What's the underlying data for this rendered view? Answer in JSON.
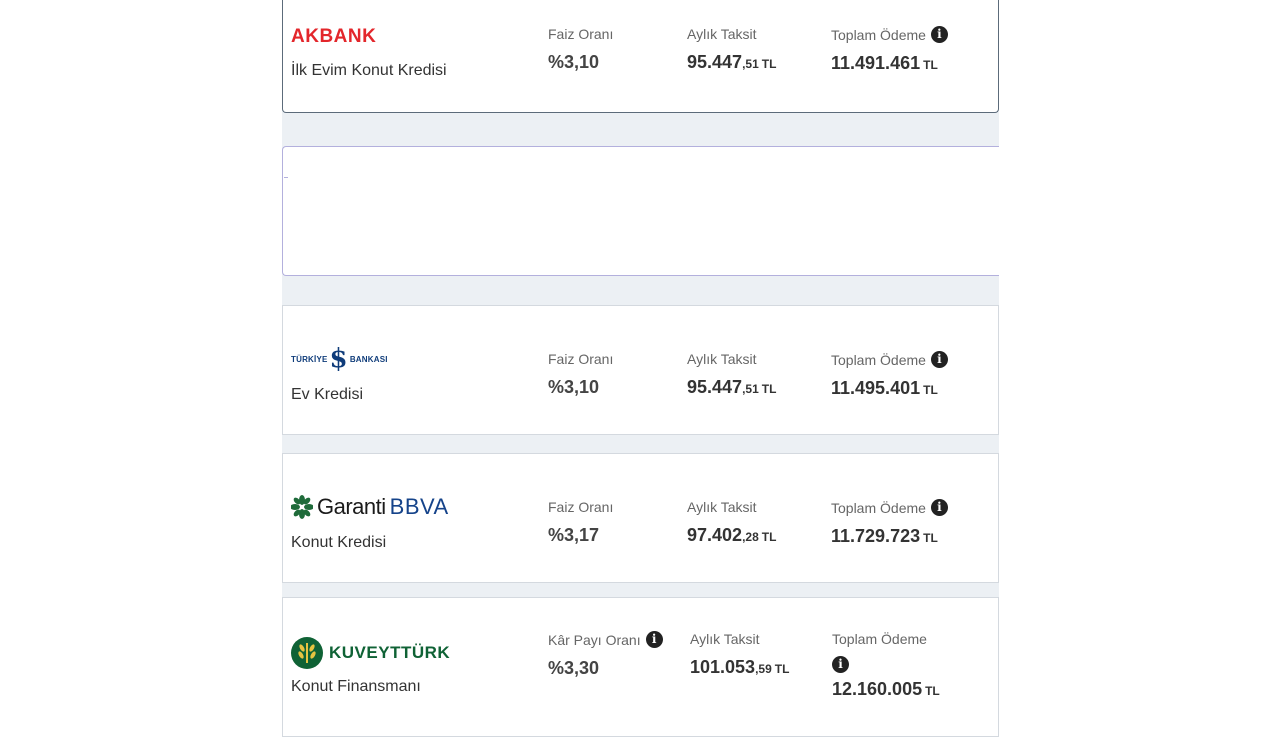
{
  "cards": [
    {
      "bank": "AKBANK",
      "product": "İlk Evim Konut Kredisi",
      "rate_label": "Faiz Oranı",
      "rate": "%3,10",
      "installment_label": "Aylık Taksit",
      "installment_int": "95.447",
      "installment_dec": ",51",
      "installment_unit": "TL",
      "total_label": "Toplam Ödeme",
      "total": "11.491.461",
      "total_unit": "TL"
    },
    {
      "bank": "TÜRKİYE İŞ BANKASI",
      "logo_left": "TÜRKİYE",
      "logo_right": "BANKASI",
      "product": "Ev Kredisi",
      "rate_label": "Faiz Oranı",
      "rate": "%3,10",
      "installment_label": "Aylık Taksit",
      "installment_int": "95.447",
      "installment_dec": ",51",
      "installment_unit": "TL",
      "total_label": "Toplam Ödeme",
      "total": "11.495.401",
      "total_unit": "TL"
    },
    {
      "bank": "Garanti BBVA",
      "logo_left": "Garanti",
      "logo_right": "BBVA",
      "product": "Konut Kredisi",
      "rate_label": "Faiz Oranı",
      "rate": "%3,17",
      "installment_label": "Aylık Taksit",
      "installment_int": "97.402",
      "installment_dec": ",28",
      "installment_unit": "TL",
      "total_label": "Toplam Ödeme",
      "total": "11.729.723",
      "total_unit": "TL"
    },
    {
      "bank": "KUVEYTTÜRK",
      "product": "Konut Finansmanı",
      "rate_label": "Kâr Payı Oranı",
      "rate": "%3,30",
      "installment_label": "Aylık Taksit",
      "installment_int": "101.053",
      "installment_dec": ",59",
      "installment_unit": "TL",
      "total_label": "Toplam Ödeme",
      "total": "12.160.005",
      "total_unit": "TL"
    }
  ],
  "colors": {
    "akbank_red": "#e3262b",
    "isbank_blue": "#0f3c7a",
    "garanti_blue": "#15438a",
    "kuveytturk_green": "#0f6235",
    "page_bg": "#ecf0f4"
  },
  "icons": {
    "info": "info-icon"
  }
}
